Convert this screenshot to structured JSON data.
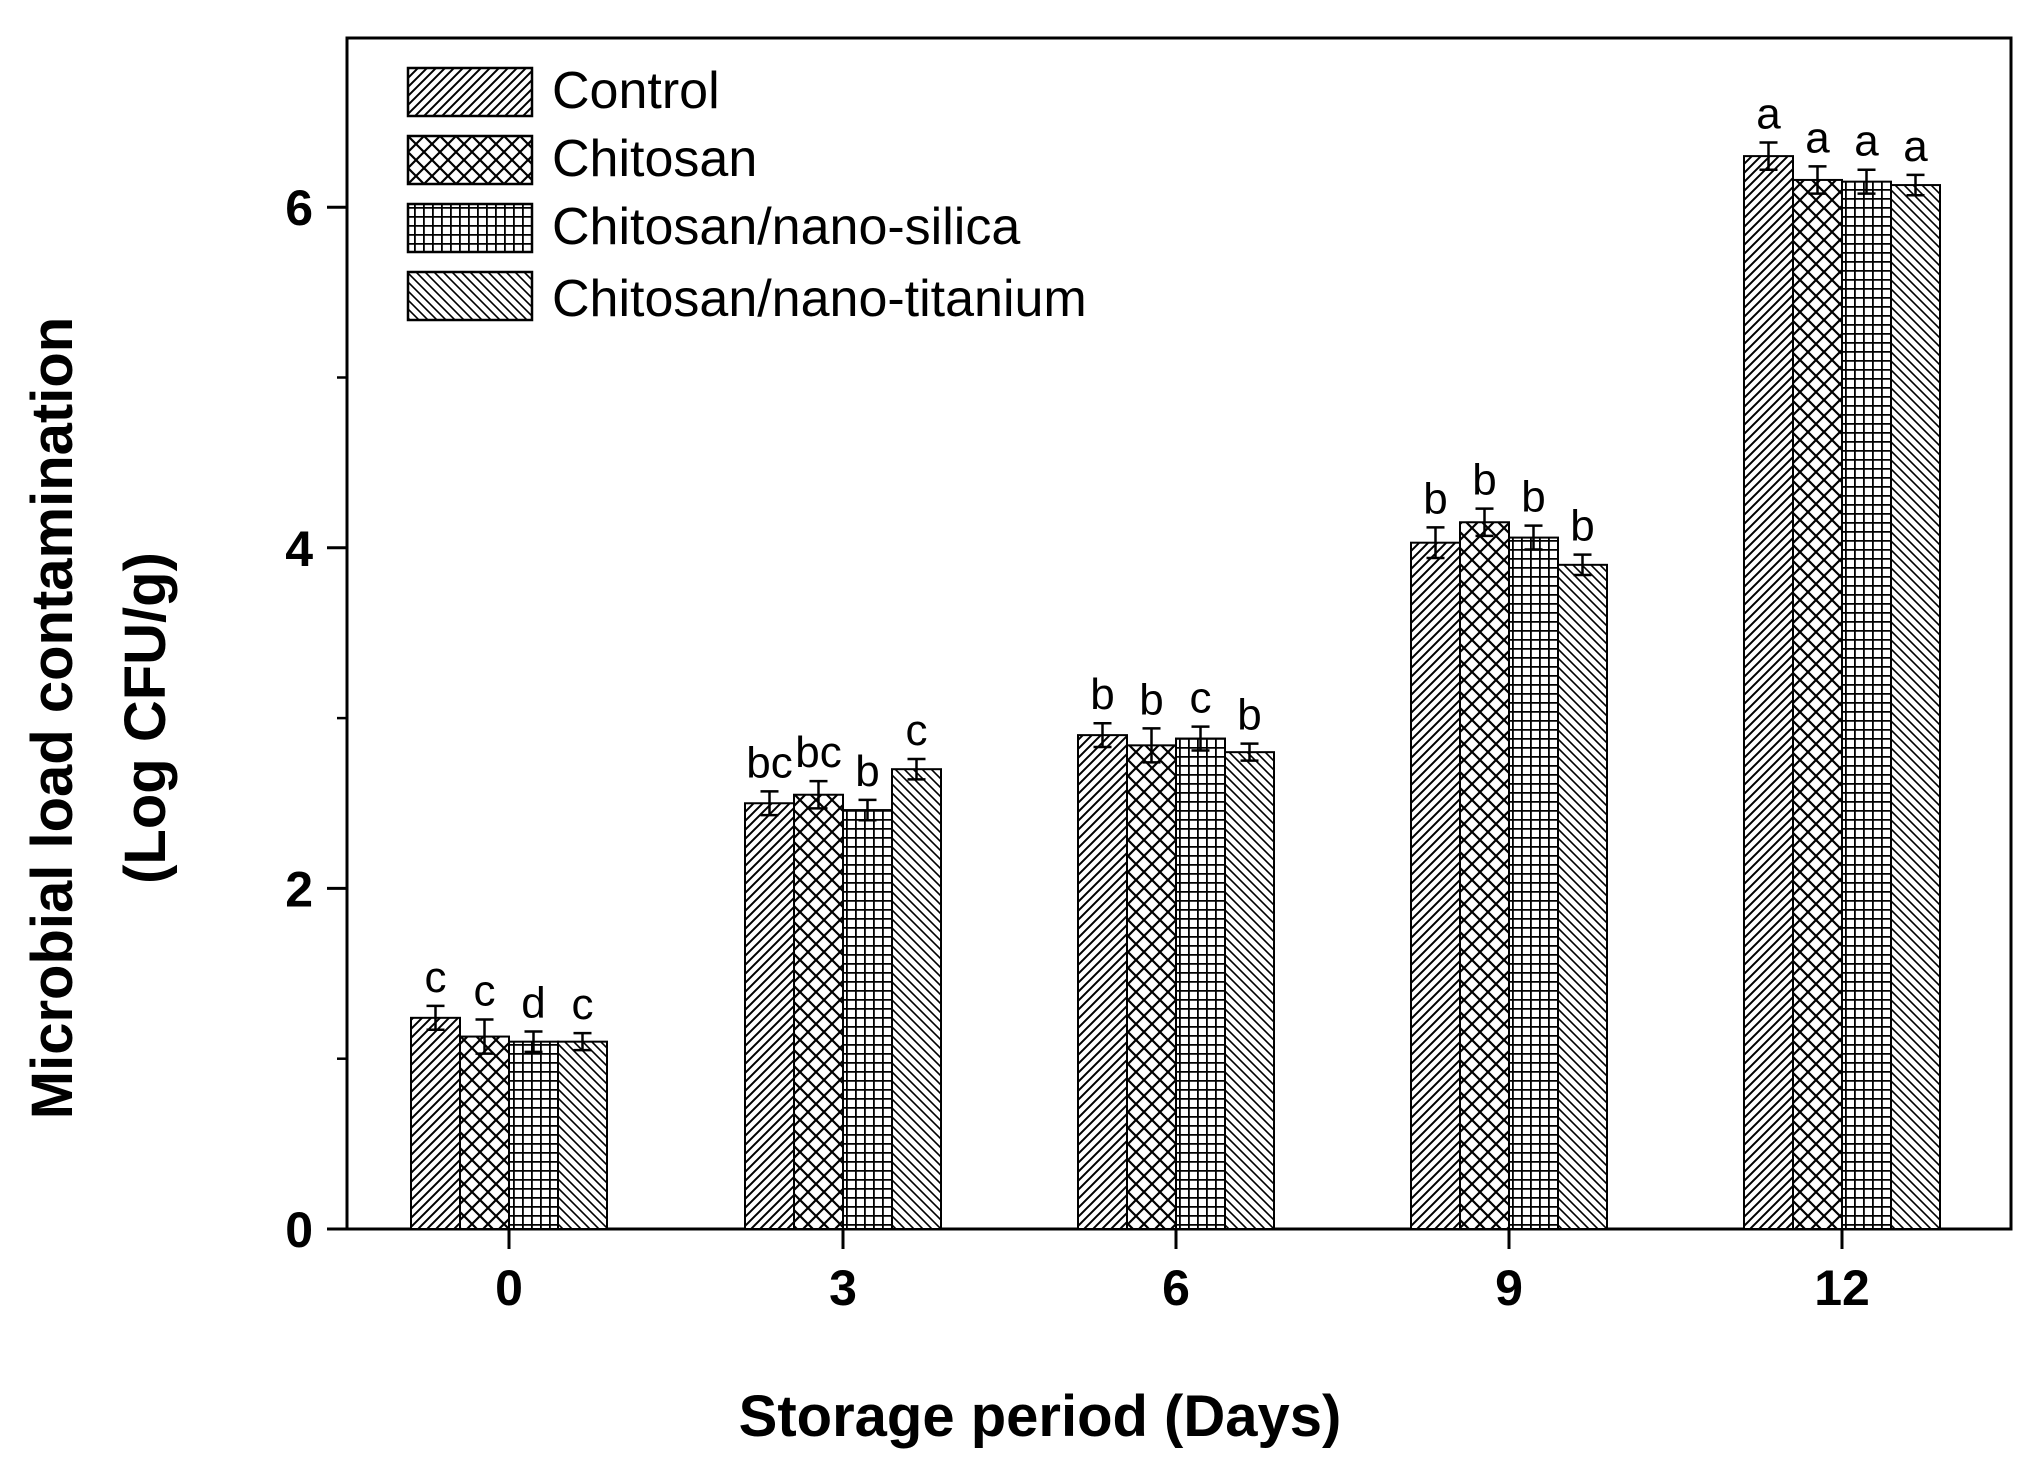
{
  "chart_data": {
    "type": "bar",
    "xlabel": "Storage period (Days)",
    "ylabel_line1": "Microbial load contamination",
    "ylabel_line2": "(Log CFU/g)",
    "categories": [
      "0",
      "3",
      "6",
      "9",
      "12"
    ],
    "ylim": [
      0,
      7
    ],
    "yticks": [
      0,
      2,
      4,
      6
    ],
    "legend_position": "top-left",
    "series": [
      {
        "name": "Control",
        "pattern": "diag-fine",
        "values": [
          1.24,
          2.5,
          2.9,
          4.03,
          6.3
        ],
        "errors": [
          0.07,
          0.07,
          0.07,
          0.09,
          0.08
        ],
        "labels": [
          "c",
          "bc",
          "b",
          "b",
          "a"
        ]
      },
      {
        "name": "Chitosan",
        "pattern": "crosshatch",
        "values": [
          1.13,
          2.55,
          2.84,
          4.15,
          6.16
        ],
        "errors": [
          0.1,
          0.08,
          0.1,
          0.08,
          0.08
        ],
        "labels": [
          "c",
          "bc",
          "b",
          "b",
          "a"
        ]
      },
      {
        "name": "Chitosan/nano-silica",
        "pattern": "grid",
        "values": [
          1.1,
          2.46,
          2.88,
          4.06,
          6.15
        ],
        "errors": [
          0.06,
          0.06,
          0.07,
          0.07,
          0.07
        ],
        "labels": [
          "d",
          "b",
          "c",
          "b",
          "a"
        ]
      },
      {
        "name": "Chitosan/nano-titanium",
        "pattern": "diag-back",
        "values": [
          1.1,
          2.7,
          2.8,
          3.9,
          6.13
        ],
        "errors": [
          0.05,
          0.06,
          0.05,
          0.06,
          0.06
        ],
        "labels": [
          "c",
          "c",
          "b",
          "b",
          "a"
        ]
      }
    ],
    "colors": {
      "bar_stroke": "#000000",
      "bar_fill": "#ffffff",
      "axis": "#000000"
    }
  }
}
